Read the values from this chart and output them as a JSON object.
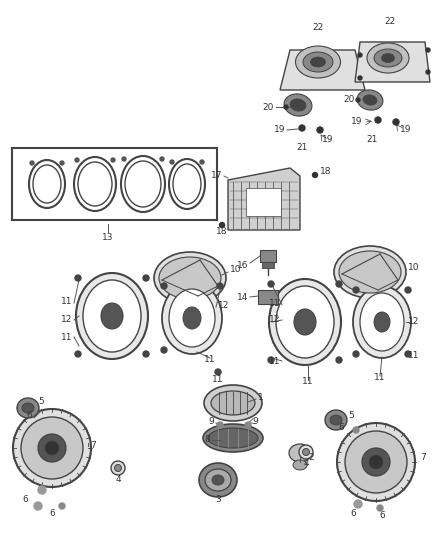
{
  "bg_color": "#ffffff",
  "fig_width": 4.38,
  "fig_height": 5.33,
  "dpi": 100,
  "border_color": "#444444",
  "line_color": "#555555",
  "label_fontsize": 6.5,
  "label_color": "#333333"
}
